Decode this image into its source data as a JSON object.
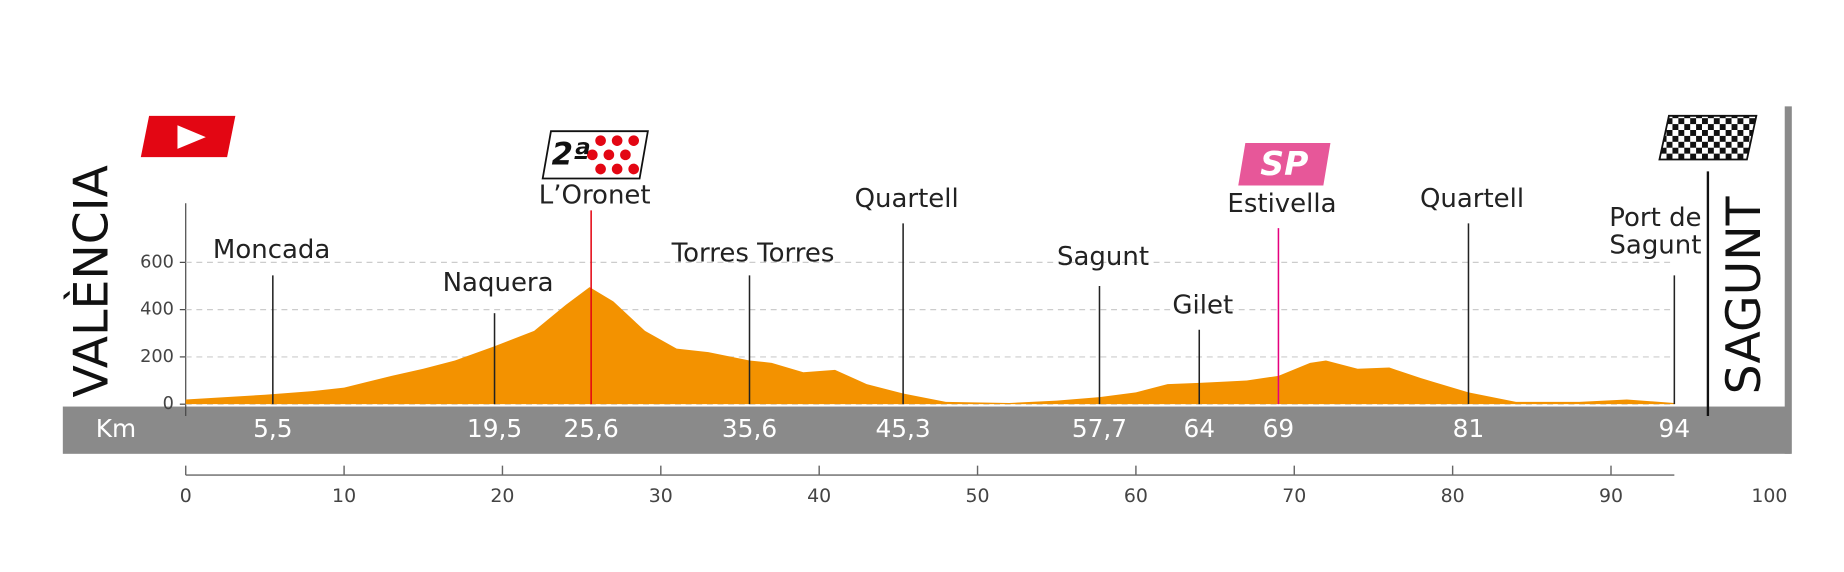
{
  "chart_data": {
    "type": "area",
    "start": "VALÈNCIA",
    "finish": "SAGUNT",
    "km_label": "Km",
    "color": "#f39200",
    "x": [
      0,
      5,
      8,
      10,
      13,
      15,
      17,
      19.5,
      22,
      24,
      25.5,
      27,
      29,
      31,
      33,
      35.6,
      37,
      39,
      41,
      43,
      45.3,
      48,
      52,
      55,
      57.7,
      60,
      62,
      64,
      67,
      69,
      71,
      72,
      74,
      76,
      78,
      81,
      84,
      88,
      91,
      94
    ],
    "values": [
      20,
      40,
      55,
      70,
      120,
      150,
      185,
      245,
      310,
      420,
      495,
      435,
      310,
      235,
      220,
      185,
      175,
      135,
      145,
      85,
      45,
      10,
      5,
      15,
      30,
      50,
      85,
      90,
      100,
      120,
      175,
      185,
      150,
      155,
      110,
      50,
      10,
      10,
      20,
      5
    ],
    "xlim": [
      0,
      100
    ],
    "xticks": [
      0,
      10,
      20,
      30,
      40,
      50,
      60,
      70,
      80,
      90,
      100
    ],
    "ylim": [
      0,
      850
    ],
    "yticks": [
      0,
      200,
      400,
      600
    ],
    "grid": true,
    "waypoints": [
      {
        "name": "Moncada",
        "value": 5.5,
        "label": "5,5"
      },
      {
        "name": "Naquera",
        "value": 19.5,
        "label": "19,5"
      },
      {
        "name": "L’Oronet",
        "value": 25.6,
        "label": "25,6",
        "badge": "2ª",
        "color": "#e30613"
      },
      {
        "name": "Torres Torres",
        "value": 35.6,
        "label": "35,6"
      },
      {
        "name": "Quartell",
        "value": 45.3,
        "label": "45,3"
      },
      {
        "name": "Sagunt",
        "value": 57.7,
        "label": "57,7"
      },
      {
        "name": "Gilet",
        "value": 64
      },
      {
        "name": "Estivella",
        "value": 69,
        "badge": "SP",
        "color": "#e5007e"
      },
      {
        "name": "Quartell",
        "value": 81
      },
      {
        "name": [
          "Port de",
          "Sagunt"
        ],
        "value": 94
      }
    ]
  }
}
